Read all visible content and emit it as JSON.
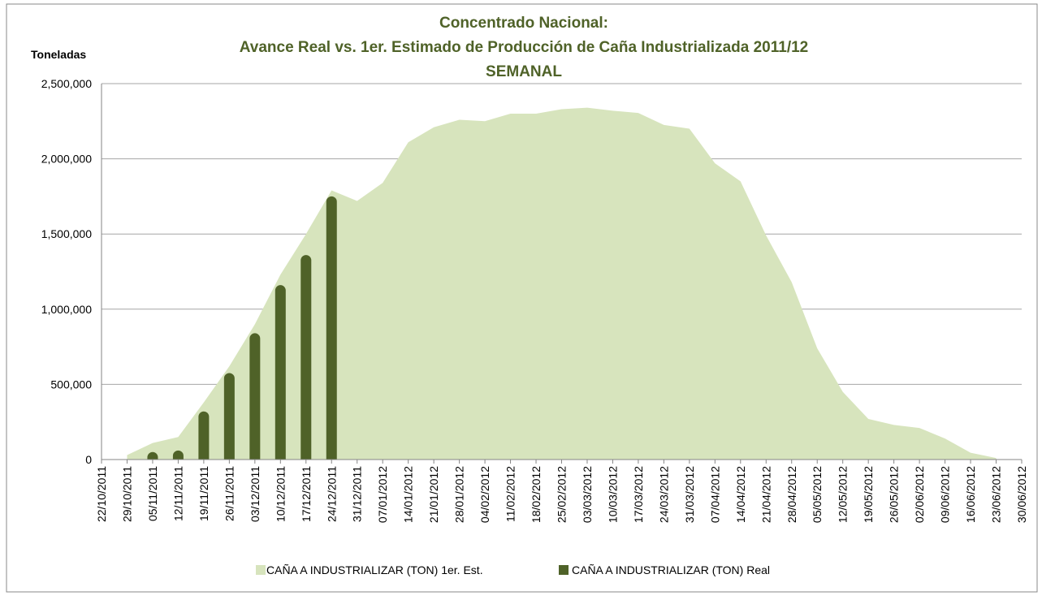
{
  "chart_data": {
    "type": "area-bar",
    "title": [
      "Concentrado Nacional:",
      "Avance Real vs. 1er. Estimado de Producción de Caña Industrializada 2011/12",
      "SEMANAL"
    ],
    "y_label": "Toneladas",
    "categories": [
      "22/10/2011",
      "29/10/2011",
      "05/11/2011",
      "12/11/2011",
      "19/11/2011",
      "26/11/2011",
      "03/12/2011",
      "10/12/2011",
      "17/12/2011",
      "24/12/2011",
      "31/12/2011",
      "07/01/2012",
      "14/01/2012",
      "21/01/2012",
      "28/01/2012",
      "04/02/2012",
      "11/02/2012",
      "18/02/2012",
      "25/02/2012",
      "03/03/2012",
      "10/03/2012",
      "17/03/2012",
      "24/03/2012",
      "31/03/2012",
      "07/04/2012",
      "14/04/2012",
      "21/04/2012",
      "28/04/2012",
      "05/05/2012",
      "12/05/2012",
      "19/05/2012",
      "26/05/2012",
      "02/06/2012",
      "09/06/2012",
      "16/06/2012",
      "23/06/2012",
      "30/06/2012"
    ],
    "series": [
      {
        "name": "CAÑA A INDUSTRIALIZAR (TON) 1er. Est.",
        "color": "#d7e4bd",
        "kind": "area",
        "values": [
          null,
          30000,
          110000,
          150000,
          380000,
          620000,
          900000,
          1230000,
          1500000,
          1790000,
          1720000,
          1840000,
          2110000,
          2210000,
          2260000,
          2250000,
          2300000,
          2300000,
          2330000,
          2340000,
          2320000,
          2305000,
          2225000,
          2200000,
          1970000,
          1850000,
          1490000,
          1180000,
          740000,
          450000,
          270000,
          230000,
          210000,
          140000,
          45000,
          10000,
          null
        ]
      },
      {
        "name": "CAÑA A INDUSTRIALIZAR (TON) Real",
        "color": "#4f6228",
        "kind": "bar",
        "values": [
          null,
          null,
          50000,
          60000,
          320000,
          575000,
          840000,
          1160000,
          1360000,
          1750000,
          null,
          null,
          null,
          null,
          null,
          null,
          null,
          null,
          null,
          null,
          null,
          null,
          null,
          null,
          null,
          null,
          null,
          null,
          null,
          null,
          null,
          null,
          null,
          null,
          null,
          null,
          null
        ]
      }
    ],
    "ylim": [
      0,
      2500000
    ],
    "yticks": [
      0,
      {
        "value": 500000,
        "label": "500,000"
      },
      {
        "value": 1000000,
        "label": "1,000,000"
      },
      {
        "value": 1500000,
        "label": "1,500,000"
      },
      {
        "value": 2000000,
        "label": "2,000,000"
      },
      {
        "value": 2500000,
        "label": "2,500,000"
      }
    ],
    "grid": true,
    "legend": "bottom"
  }
}
